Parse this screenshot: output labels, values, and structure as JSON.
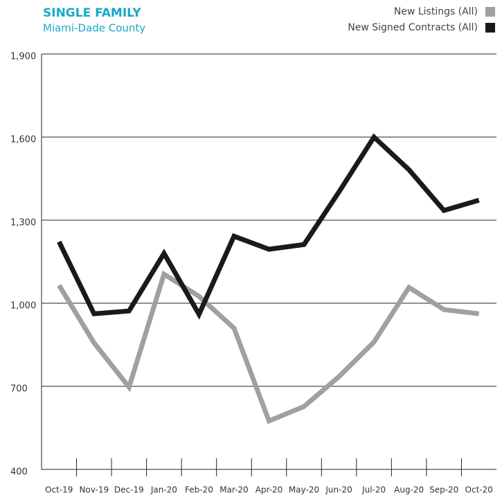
{
  "chart_data": {
    "type": "line",
    "title": "SINGLE FAMILY",
    "subtitle": "Miami-Dade County",
    "categories": [
      "Oct-19",
      "Nov-19",
      "Dec-19",
      "Jan-20",
      "Feb-20",
      "Mar-20",
      "Apr-20",
      "May-20",
      "Jun-20",
      "Jul-20",
      "Aug-20",
      "Sep-20",
      "Oct-20"
    ],
    "series": [
      {
        "name": "New Listings (All)",
        "color": "#a0a0a2",
        "values": [
          1065,
          857,
          697,
          1105,
          1025,
          910,
          575,
          627,
          735,
          860,
          1057,
          977,
          962
        ]
      },
      {
        "name": "New Signed Contracts (All)",
        "color": "#1a1a1e",
        "values": [
          1222,
          962,
          972,
          1180,
          960,
          1242,
          1195,
          1212,
          1402,
          1600,
          1482,
          1335,
          1372
        ]
      }
    ],
    "ylim": [
      400,
      1900
    ],
    "yticks": [
      400,
      700,
      {
        "value": 1000,
        "label": "1,000"
      },
      {
        "value": 1300,
        "label": "1,300"
      },
      {
        "value": 1600,
        "label": "1,600"
      },
      {
        "value": 1900,
        "label": "1,900"
      }
    ],
    "grid": true,
    "legend": "top-right"
  }
}
